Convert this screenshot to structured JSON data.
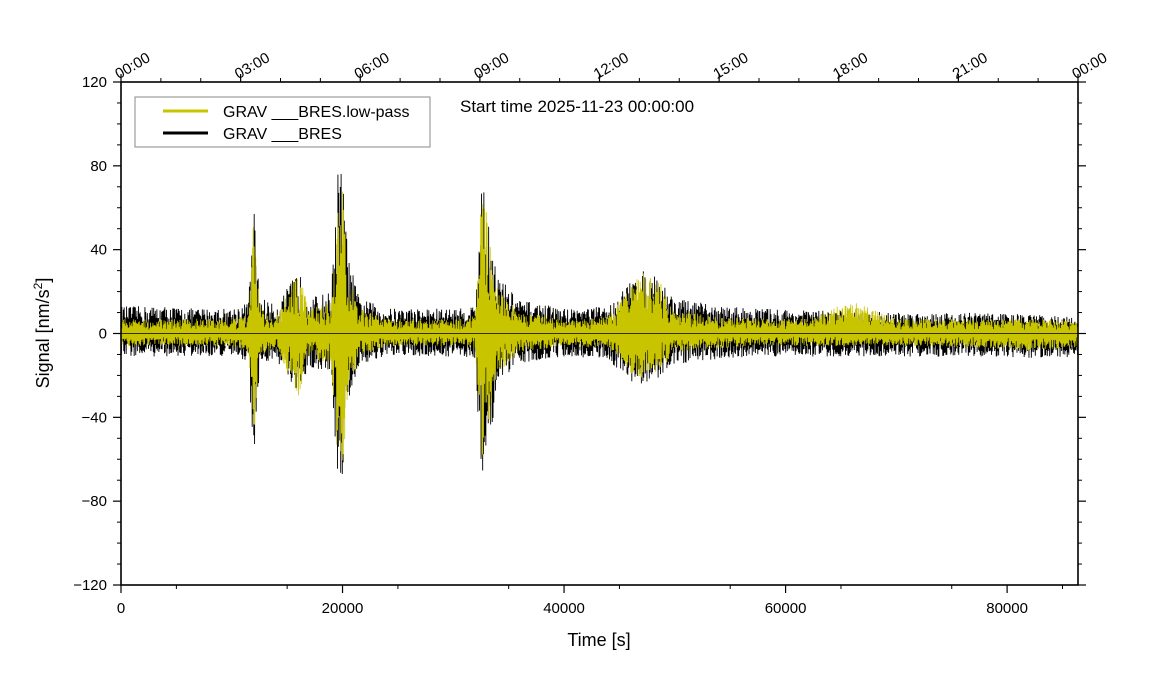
{
  "chart_data": {
    "type": "line",
    "title": "Start time 2025-11-23 00:00:00",
    "xlabel": "Time [s]",
    "ylabel": "Signal [nm/s",
    "ylabel_sup": "2",
    "ylabel_end": "]",
    "xlim": [
      0,
      86400
    ],
    "ylim": [
      -120,
      120
    ],
    "x_ticks": [
      0,
      20000,
      40000,
      60000,
      80000
    ],
    "x_tick_labels": [
      "0",
      "20000",
      "40000",
      "60000",
      "80000"
    ],
    "y_ticks": [
      -120,
      -80,
      -40,
      0,
      40,
      80,
      120
    ],
    "y_tick_labels": [
      "−120",
      "−80",
      "−40",
      "0",
      "40",
      "80",
      "120"
    ],
    "top_axis_ticks_s": [
      0,
      10800,
      21600,
      32400,
      43200,
      54000,
      64800,
      75600,
      86400
    ],
    "top_axis_labels": [
      "00:00",
      "03:00",
      "06:00",
      "09:00",
      "12:00",
      "15:00",
      "18:00",
      "21:00",
      "00:00"
    ],
    "legend_position": "top-left",
    "series": [
      {
        "name": "GRAV ___BRES.low-pass",
        "color": "#c8c400",
        "envelope": {
          "x": [
            0,
            2000,
            4000,
            6000,
            8000,
            10000,
            11500,
            12000,
            12500,
            14000,
            16000,
            17000,
            19000,
            19500,
            20000,
            20500,
            21500,
            24000,
            28000,
            31000,
            32000,
            32500,
            33000,
            34000,
            36000,
            40000,
            44000,
            46000,
            47000,
            48500,
            50000,
            54000,
            58000,
            62000,
            66000,
            70000,
            74000,
            78000,
            82000,
            86400
          ],
          "upper": [
            7,
            7,
            7,
            7,
            7,
            7,
            9,
            56,
            12,
            8,
            29,
            12,
            15,
            58,
            70,
            30,
            12,
            7,
            7,
            7,
            9,
            70,
            58,
            22,
            10,
            7,
            8,
            22,
            29,
            26,
            12,
            8,
            7,
            7,
            16,
            7,
            7,
            7,
            7,
            6
          ],
          "lower": [
            -6,
            -6,
            -6,
            -6,
            -6,
            -6,
            -8,
            -52,
            -10,
            -7,
            -30,
            -11,
            -15,
            -55,
            -66,
            -28,
            -11,
            -6,
            -6,
            -6,
            -8,
            -64,
            -53,
            -20,
            -9,
            -6,
            -7,
            -20,
            -21,
            -18,
            -10,
            -7,
            -6,
            -6,
            -6,
            -6,
            -6,
            -7,
            -8,
            -7
          ]
        }
      },
      {
        "name": "GRAV ___BRES",
        "color": "#000000",
        "envelope": {
          "x": [
            0,
            2000,
            4000,
            6000,
            8000,
            10000,
            11500,
            12000,
            12500,
            14000,
            16000,
            17000,
            19000,
            19500,
            20000,
            20500,
            21500,
            24000,
            28000,
            31000,
            32000,
            32500,
            33000,
            34000,
            36000,
            40000,
            44000,
            46000,
            47000,
            48500,
            50000,
            54000,
            58000,
            62000,
            66000,
            70000,
            74000,
            78000,
            82000,
            86400
          ],
          "upper": [
            13,
            13,
            13,
            12,
            12,
            12,
            15,
            61,
            18,
            13,
            30,
            17,
            20,
            79,
            78,
            37,
            17,
            12,
            12,
            12,
            14,
            72,
            64,
            28,
            16,
            12,
            13,
            25,
            30,
            27,
            17,
            13,
            12,
            11,
            11,
            10,
            10,
            10,
            9,
            8
          ],
          "lower": [
            -11,
            -11,
            -11,
            -11,
            -11,
            -11,
            -13,
            -66,
            -16,
            -12,
            -32,
            -16,
            -19,
            -68,
            -70,
            -33,
            -15,
            -11,
            -11,
            -11,
            -13,
            -69,
            -62,
            -26,
            -14,
            -11,
            -12,
            -25,
            -24,
            -22,
            -15,
            -12,
            -11,
            -11,
            -11,
            -11,
            -11,
            -11,
            -12,
            -11
          ]
        }
      }
    ]
  }
}
